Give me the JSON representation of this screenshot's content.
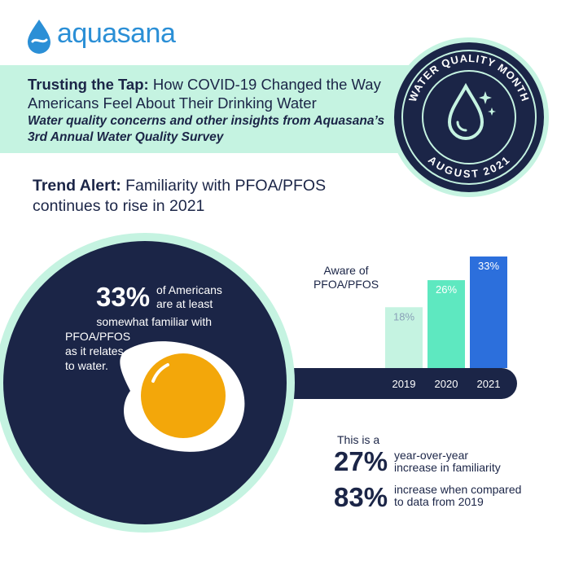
{
  "brand": {
    "name": "aquasana",
    "color": "#2b8fd6"
  },
  "banner": {
    "title_bold": "Trusting the Tap:",
    "title_rest": " How COVID-19 Changed the Way Americans Feel About Their Drinking Water",
    "subtitle": "Water quality concerns and other insights from Aquasana’s 3rd Annual Water Quality Survey",
    "bg": "#c5f3e1"
  },
  "badge": {
    "top_text": "WATER QUALITY MONTH",
    "bottom_text": "AUGUST 2021",
    "icon": "water-drop-sparkle-icon"
  },
  "trend": {
    "label_bold": "Trend Alert:",
    "label_rest": " Familiarity with PFOA/PFOS  continues to rise in 2021"
  },
  "pan_stat": {
    "value": "33%",
    "line1": "of Americans are at least",
    "line2": "somewhat familiar with",
    "line3": "PFOA/PFOS",
    "line4": "as it relates",
    "line5": "to water."
  },
  "chart_data": {
    "type": "bar",
    "title": "Aware of PFOA/PFOS",
    "categories": [
      "2019",
      "2020",
      "2021"
    ],
    "values": [
      18,
      26,
      33
    ],
    "value_labels": [
      "18%",
      "26%",
      "33%"
    ],
    "colors": [
      "#c5f3e1",
      "#5ee8c0",
      "#2c6fdc"
    ],
    "ylim": [
      0,
      33
    ]
  },
  "bottom": {
    "intro": "This is a",
    "stat1_value": "27%",
    "stat1_desc1": "year-over-year",
    "stat1_desc2": "increase in familiarity",
    "stat2_value": "83%",
    "stat2_desc1": "increase when compared",
    "stat2_desc2": "to data from 2019"
  },
  "colors": {
    "navy": "#1b2547",
    "mint": "#c5f3e1",
    "yolk": "#f3a70a"
  }
}
